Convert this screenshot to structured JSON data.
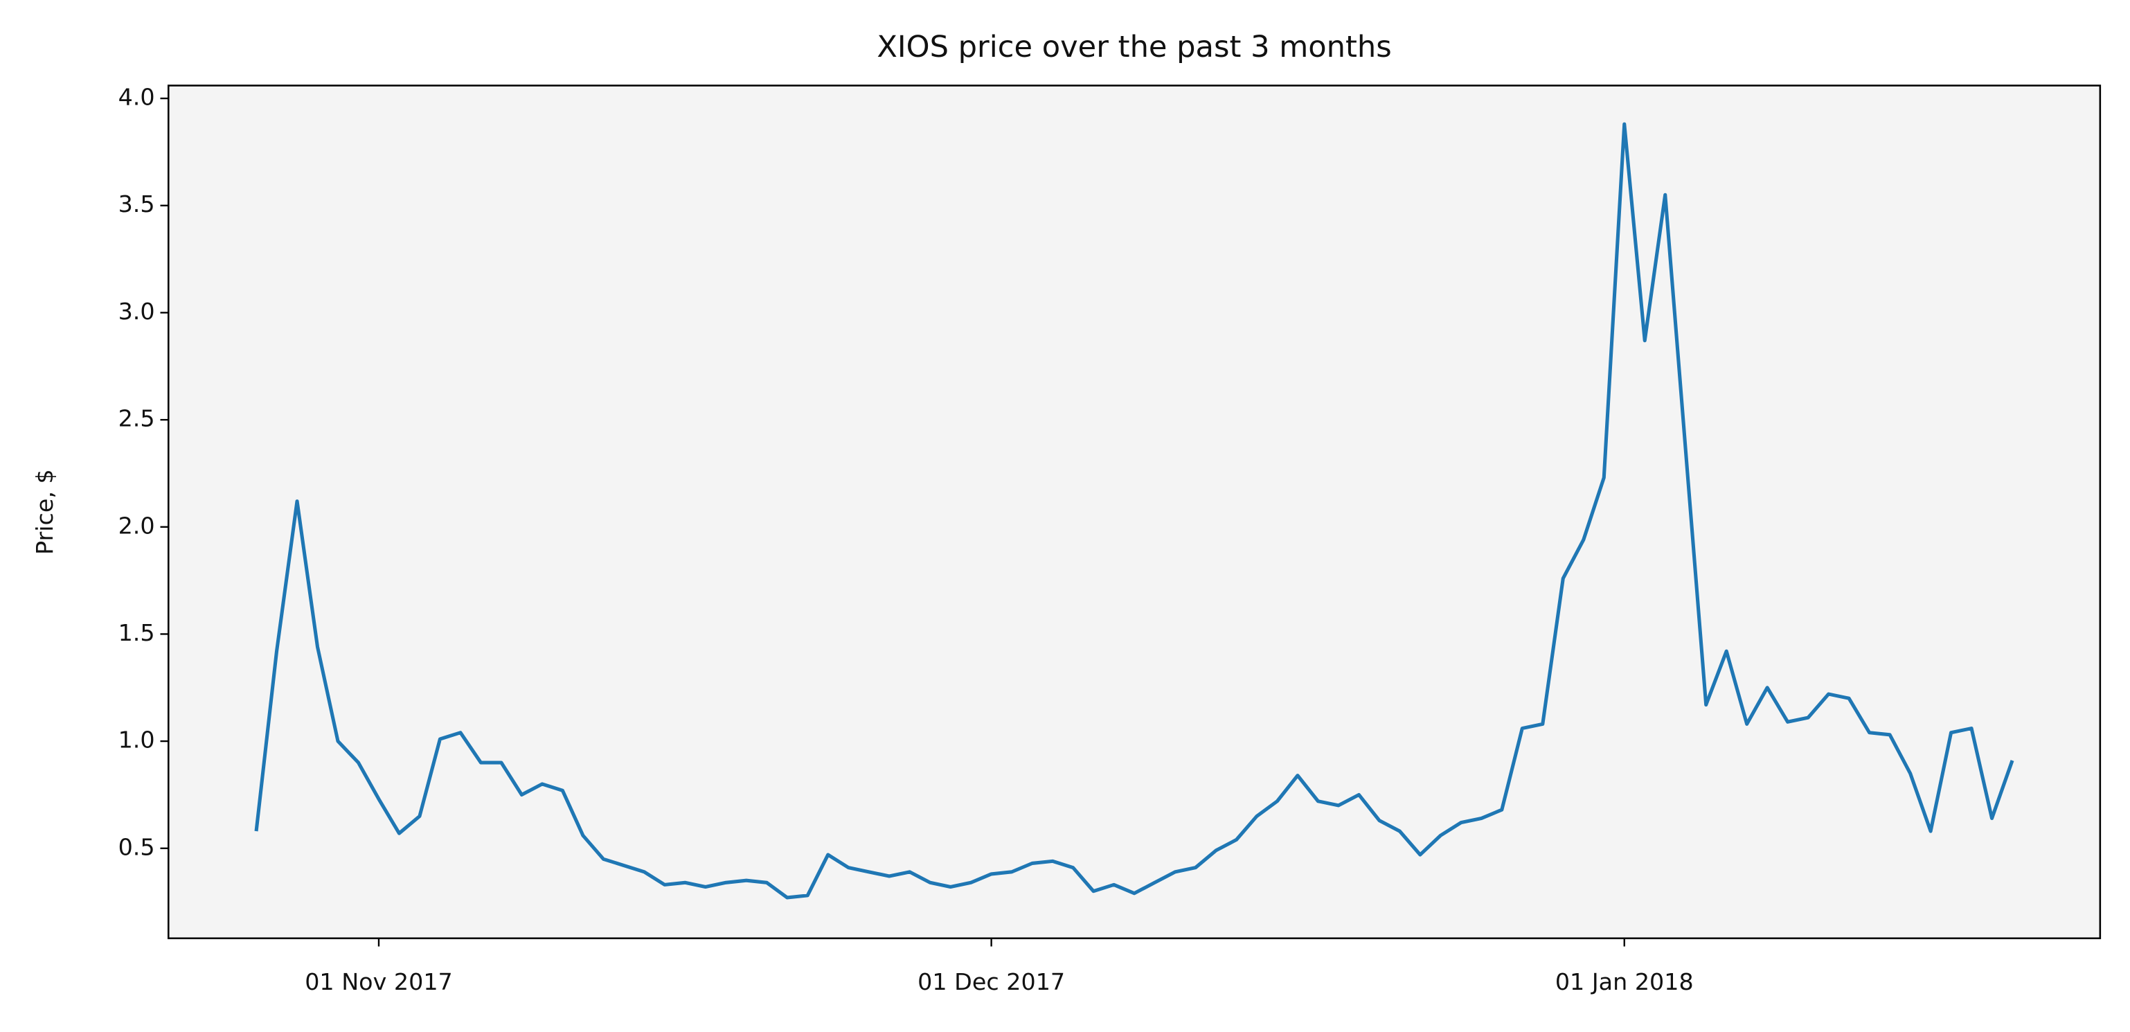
{
  "chart_data": {
    "type": "line",
    "title": "XIOS price over the past 3 months",
    "y_label": "Price, $",
    "x": [
      "2017-10-26",
      "2017-10-27",
      "2017-10-28",
      "2017-10-29",
      "2017-10-30",
      "2017-10-31",
      "2017-11-01",
      "2017-11-02",
      "2017-11-03",
      "2017-11-04",
      "2017-11-05",
      "2017-11-06",
      "2017-11-07",
      "2017-11-08",
      "2017-11-09",
      "2017-11-10",
      "2017-11-11",
      "2017-11-12",
      "2017-11-13",
      "2017-11-14",
      "2017-11-15",
      "2017-11-16",
      "2017-11-17",
      "2017-11-18",
      "2017-11-19",
      "2017-11-20",
      "2017-11-21",
      "2017-11-22",
      "2017-11-23",
      "2017-11-24",
      "2017-11-25",
      "2017-11-26",
      "2017-11-27",
      "2017-11-28",
      "2017-11-29",
      "2017-11-30",
      "2017-12-01",
      "2017-12-02",
      "2017-12-03",
      "2017-12-04",
      "2017-12-05",
      "2017-12-06",
      "2017-12-07",
      "2017-12-08",
      "2017-12-09",
      "2017-12-10",
      "2017-12-11",
      "2017-12-12",
      "2017-12-13",
      "2017-12-14",
      "2017-12-15",
      "2017-12-16",
      "2017-12-17",
      "2017-12-18",
      "2017-12-19",
      "2017-12-20",
      "2017-12-21",
      "2017-12-22",
      "2017-12-23",
      "2017-12-24",
      "2017-12-25",
      "2017-12-26",
      "2017-12-27",
      "2017-12-28",
      "2017-12-29",
      "2017-12-30",
      "2017-12-31",
      "2018-01-01",
      "2018-01-02",
      "2018-01-03",
      "2018-01-04",
      "2018-01-05",
      "2018-01-06",
      "2018-01-07",
      "2018-01-08",
      "2018-01-09",
      "2018-01-10",
      "2018-01-11",
      "2018-01-12",
      "2018-01-13",
      "2018-01-14",
      "2018-01-15",
      "2018-01-16",
      "2018-01-17",
      "2018-01-18",
      "2018-01-19",
      "2018-01-20"
    ],
    "series": [
      {
        "color": "#1f77b4",
        "values": [
          0.58,
          1.42,
          2.12,
          1.44,
          1.0,
          0.9,
          0.73,
          0.57,
          0.65,
          1.01,
          1.04,
          0.9,
          0.9,
          0.75,
          0.8,
          0.77,
          0.56,
          0.45,
          0.42,
          0.39,
          0.33,
          0.34,
          0.32,
          0.34,
          0.35,
          0.34,
          0.27,
          0.28,
          0.47,
          0.41,
          0.39,
          0.37,
          0.39,
          0.34,
          0.32,
          0.34,
          0.38,
          0.39,
          0.43,
          0.44,
          0.41,
          0.3,
          0.33,
          0.29,
          0.34,
          0.39,
          0.41,
          0.49,
          0.54,
          0.65,
          0.72,
          0.84,
          0.72,
          0.7,
          0.75,
          0.63,
          0.58,
          0.47,
          0.56,
          0.62,
          0.64,
          0.68,
          1.06,
          1.08,
          1.76,
          1.94,
          2.23,
          3.88,
          2.87,
          3.55,
          2.36,
          1.17,
          1.42,
          1.08,
          1.25,
          1.09,
          1.11,
          1.22,
          1.2,
          1.04,
          1.03,
          0.85,
          0.58,
          1.04,
          1.06,
          0.64,
          0.91
        ]
      }
    ],
    "xlim": [
      "2017-10-21T16:48:00Z",
      "2018-01-24T07:12:00Z"
    ],
    "xticks": [
      {
        "value": "2017-11-01",
        "label": "01 Nov 2017"
      },
      {
        "value": "2017-12-01",
        "label": "01 Dec 2017"
      },
      {
        "value": "2018-01-01",
        "label": "01 Jan 2018"
      }
    ],
    "ylim": [
      0.08,
      4.06
    ],
    "yticks": [
      {
        "value": 0.5,
        "label": "0.5"
      },
      {
        "value": 1.0,
        "label": "1.0"
      },
      {
        "value": 1.5,
        "label": "1.5"
      },
      {
        "value": 2.0,
        "label": "2.0"
      },
      {
        "value": 2.5,
        "label": "2.5"
      },
      {
        "value": 3.0,
        "label": "3.0"
      },
      {
        "value": 3.5,
        "label": "3.5"
      },
      {
        "value": 4.0,
        "label": "4.0"
      }
    ],
    "background": "#f4f4f4"
  }
}
